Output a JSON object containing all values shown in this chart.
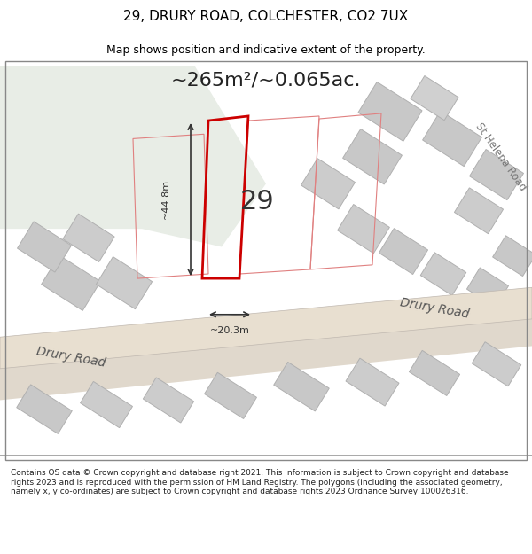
{
  "title_line1": "29, DRURY ROAD, COLCHESTER, CO2 7UX",
  "title_line2": "Map shows position and indicative extent of the property.",
  "area_text": "~265m²/~0.065ac.",
  "label_number": "29",
  "dim_height": "~44.8m",
  "dim_width": "~20.3m",
  "footer_text": "Contains OS data © Crown copyright and database right 2021. This information is subject to Crown copyright and database rights 2023 and is reproduced with the permission of HM Land Registry. The polygons (including the associated geometry, namely x, y co-ordinates) are subject to Crown copyright and database rights 2023 Ordnance Survey 100026316.",
  "bg_color": "#f0f0ee",
  "map_bg": "#f0f2ed",
  "green_area": "#e8ede6",
  "road_color": "#e8e0d8",
  "property_fill": "none",
  "property_edge": "#cc0000",
  "other_outlines": "#d9a0a0",
  "gray_block": "#c8c8c8",
  "road_label_drury": "Drury Road",
  "road_label_drury2": "Drury Road",
  "road_label_sthelena": "St Helena Road"
}
